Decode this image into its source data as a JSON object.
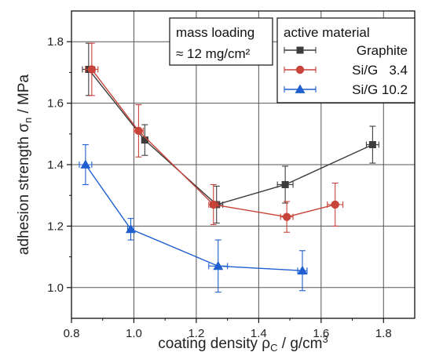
{
  "chart_data": {
    "type": "scatter",
    "xlabel": {
      "main": "coating density ρ",
      "sub": "C",
      "unit": "  /  g/cm",
      "sup": "3"
    },
    "ylabel": {
      "main": "adhesion strength σ",
      "sub": "n",
      "unit": "  /  MPa"
    },
    "xlim": [
      0.8,
      1.9
    ],
    "ylim": [
      0.9,
      1.9
    ],
    "xticks": [
      "0.8",
      "1.0",
      "1.2",
      "1.4",
      "1.6",
      "1.8"
    ],
    "yticks": [
      "1.0",
      "1.2",
      "1.4",
      "1.6",
      "1.8"
    ],
    "grid": true,
    "annotation": {
      "line1": "mass loading",
      "line2": "≈ 12 mg/cm²"
    },
    "legend": {
      "title": "active material",
      "placement": "top-right"
    },
    "series": [
      {
        "name": "Graphite",
        "color": "#3c3c3c",
        "marker": "square",
        "x": [
          0.855,
          1.035,
          1.265,
          1.485,
          1.765
        ],
        "y": [
          1.71,
          1.48,
          1.27,
          1.335,
          1.465
        ],
        "xerr": [
          0.02,
          0.01,
          0.02,
          0.025,
          0.02
        ],
        "yerr": [
          0.085,
          0.05,
          0.06,
          0.06,
          0.06
        ]
      },
      {
        "name": "Si/G   3.4",
        "color": "#c8443a",
        "marker": "circle",
        "x": [
          0.865,
          1.015,
          1.255,
          1.49,
          1.645
        ],
        "y": [
          1.71,
          1.51,
          1.27,
          1.23,
          1.27
        ],
        "xerr": [
          0.02,
          0.015,
          0.015,
          0.02,
          0.025
        ],
        "yerr": [
          0.085,
          0.085,
          0.065,
          0.05,
          0.07
        ]
      },
      {
        "name": "Si/G 10.2",
        "color": "#1f5fcf",
        "marker": "triangle",
        "x": [
          0.845,
          0.99,
          1.27,
          1.54
        ],
        "y": [
          1.4,
          1.19,
          1.07,
          1.055
        ],
        "xerr": [
          0.02,
          0.01,
          0.03,
          0.015
        ],
        "yerr": [
          0.065,
          0.035,
          0.085,
          0.065
        ]
      }
    ]
  }
}
